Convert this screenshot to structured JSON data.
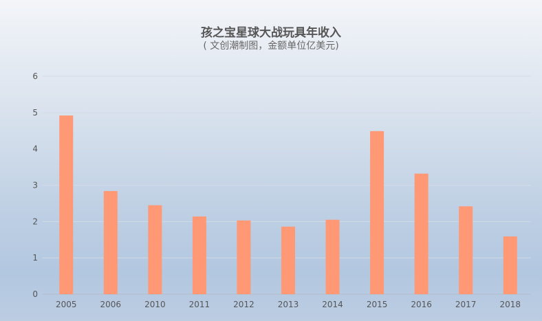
{
  "chart_data": {
    "type": "bar",
    "title": "孩之宝星球大战玩具年收入",
    "subtitle": "( 文创潮制图，金额单位亿美元)",
    "xlabel": "",
    "ylabel": "",
    "categories": [
      "2005",
      "2006",
      "2010",
      "2011",
      "2012",
      "2013",
      "2014",
      "2015",
      "2016",
      "2017",
      "2018"
    ],
    "values": [
      4.92,
      2.84,
      2.45,
      2.14,
      2.03,
      1.86,
      2.05,
      4.49,
      3.32,
      2.42,
      1.59
    ],
    "ylim": [
      0,
      6
    ],
    "yticks": [
      "0",
      "1",
      "2",
      "3",
      "4",
      "5",
      "6"
    ],
    "grid": true,
    "legend": "none",
    "colors": {
      "bar": "#ff9874",
      "grid": "#d3dbe6",
      "axis": "#b4bcc8"
    }
  }
}
